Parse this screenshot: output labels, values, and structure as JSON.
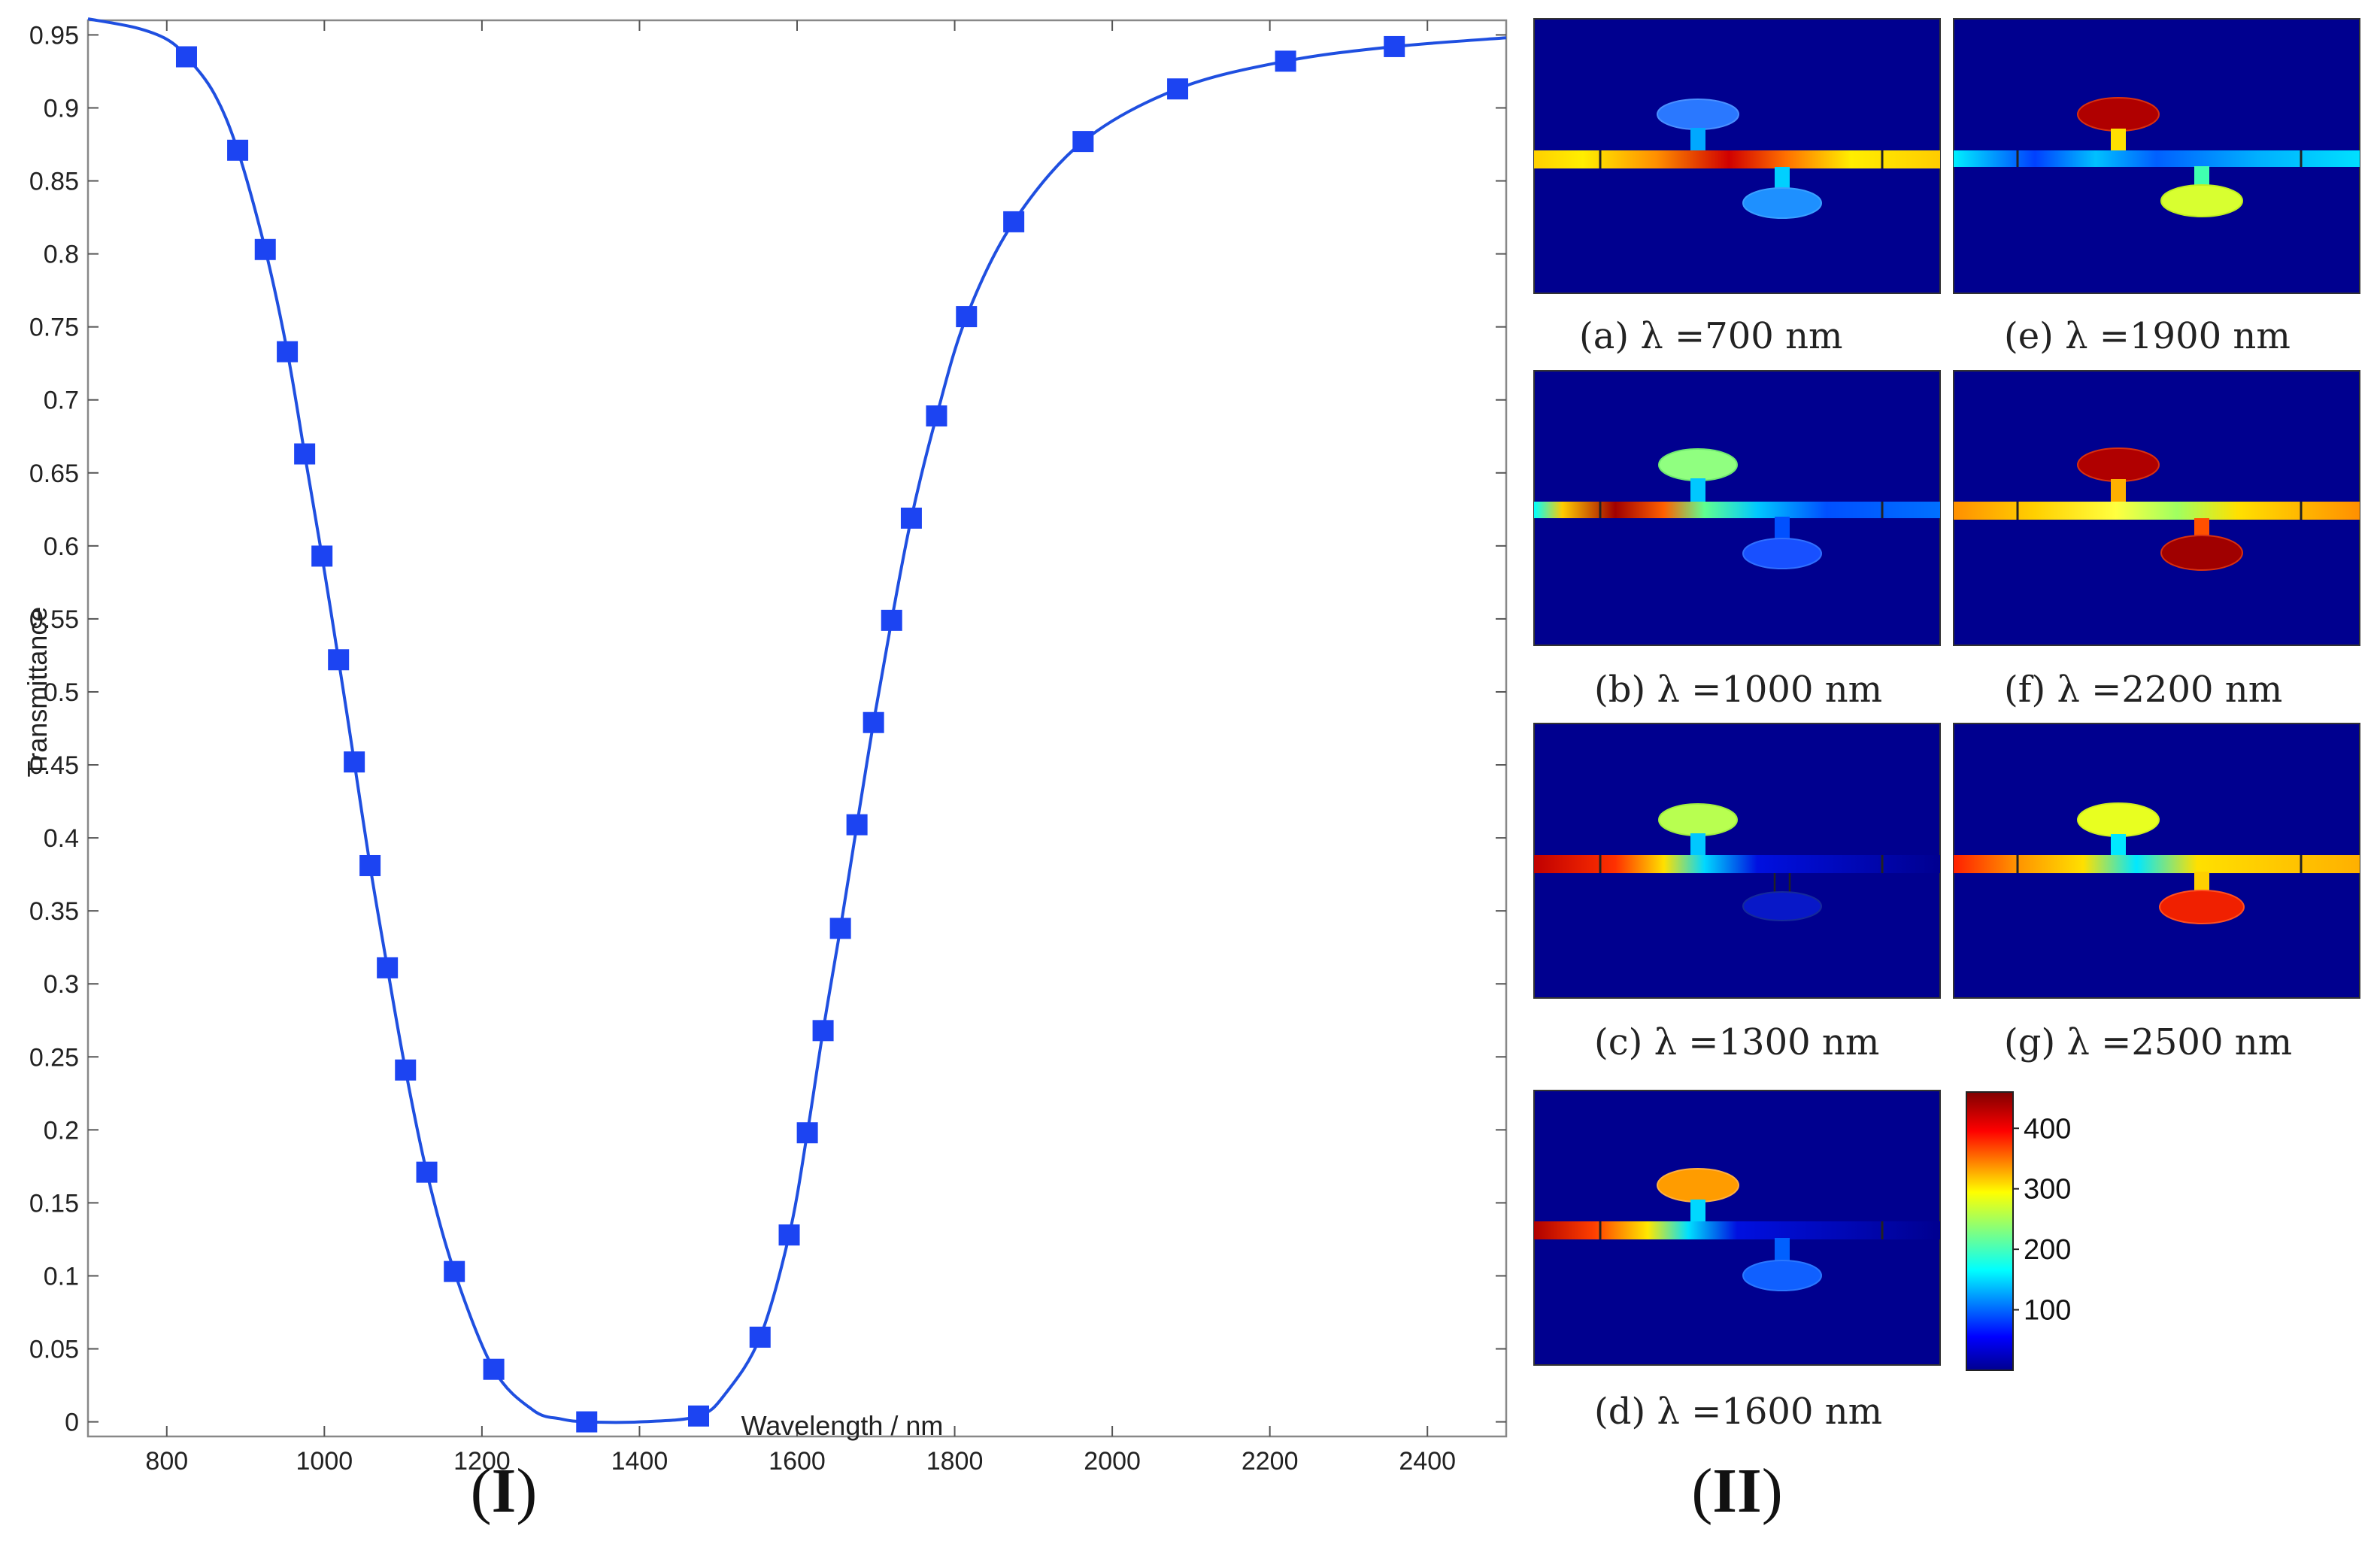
{
  "chart_data": {
    "type": "line",
    "title": "",
    "xlabel": "Wavelength / nm",
    "ylabel": "Transmittance",
    "xlim": [
      700,
      2500
    ],
    "ylim": [
      -0.01,
      0.96
    ],
    "x_ticks": [
      800,
      1000,
      1200,
      1400,
      1600,
      1800,
      2000,
      2200,
      2400
    ],
    "y_ticks": [
      "0",
      "0.05",
      "0.1",
      "0.15",
      "0.2",
      "0.25",
      "0.3",
      "0.35",
      "0.4",
      "0.45",
      "0.5",
      "0.55",
      "0.6",
      "0.65",
      "0.7",
      "0.75",
      "0.8",
      "0.85",
      "0.9",
      "0.95"
    ],
    "grid": false,
    "line_color": "#1f4fe0",
    "marker_color": "#1c44f2",
    "series": [
      {
        "name": "Transmittance",
        "marker": "square",
        "x": [
          825,
          890,
          925,
          953,
          975,
          997,
          1018,
          1038,
          1058,
          1080,
          1103,
          1130,
          1165,
          1215,
          1333,
          1475,
          1553,
          1590,
          1613,
          1633,
          1655,
          1676,
          1697,
          1720,
          1745,
          1777,
          1815,
          1875,
          1963,
          2083,
          2220,
          2358
        ],
        "y": [
          0.935,
          0.871,
          0.803,
          0.733,
          0.663,
          0.593,
          0.522,
          0.452,
          0.381,
          0.311,
          0.241,
          0.171,
          0.103,
          0.036,
          0.0,
          0.004,
          0.058,
          0.128,
          0.198,
          0.268,
          0.338,
          0.409,
          0.479,
          0.549,
          0.619,
          0.689,
          0.757,
          0.822,
          0.877,
          0.913,
          0.932,
          0.942
        ]
      }
    ],
    "curve": {
      "x": [
        700,
        760,
        800,
        825,
        860,
        890,
        925,
        953,
        975,
        997,
        1018,
        1038,
        1058,
        1080,
        1103,
        1130,
        1165,
        1215,
        1265,
        1300,
        1333,
        1400,
        1475,
        1510,
        1553,
        1590,
        1613,
        1633,
        1655,
        1676,
        1697,
        1720,
        1745,
        1777,
        1815,
        1875,
        1963,
        2083,
        2220,
        2358,
        2500
      ],
      "y": [
        0.961,
        0.955,
        0.947,
        0.935,
        0.91,
        0.871,
        0.803,
        0.733,
        0.663,
        0.593,
        0.522,
        0.452,
        0.381,
        0.311,
        0.241,
        0.171,
        0.103,
        0.036,
        0.008,
        0.002,
        0.0,
        0.0,
        0.004,
        0.02,
        0.058,
        0.128,
        0.198,
        0.268,
        0.338,
        0.409,
        0.479,
        0.549,
        0.619,
        0.689,
        0.757,
        0.822,
        0.877,
        0.913,
        0.932,
        0.942,
        0.948
      ]
    }
  },
  "panel_labels": {
    "left": "(I)",
    "left_letter": "I",
    "right": "(II)",
    "right_letter": "II"
  },
  "field_maps": [
    {
      "caption": "(a)  λ =700 nm",
      "wavelength_nm": 700
    },
    {
      "caption": "(b) λ =1000 nm",
      "wavelength_nm": 1000
    },
    {
      "caption": "(c) λ =1300 nm",
      "wavelength_nm": 1300
    },
    {
      "caption": "(d) λ =1600 nm",
      "wavelength_nm": 1600
    },
    {
      "caption": "(e)  λ =1900 nm",
      "wavelength_nm": 1900
    },
    {
      "caption": "(f)  λ =2200 nm",
      "wavelength_nm": 2200
    },
    {
      "caption": "(g)  λ =2500 nm",
      "wavelength_nm": 2500
    }
  ],
  "colorbar": {
    "colormap": "jet",
    "ticks": [
      "100",
      "200",
      "300",
      "400"
    ],
    "range": [
      0,
      460
    ]
  }
}
